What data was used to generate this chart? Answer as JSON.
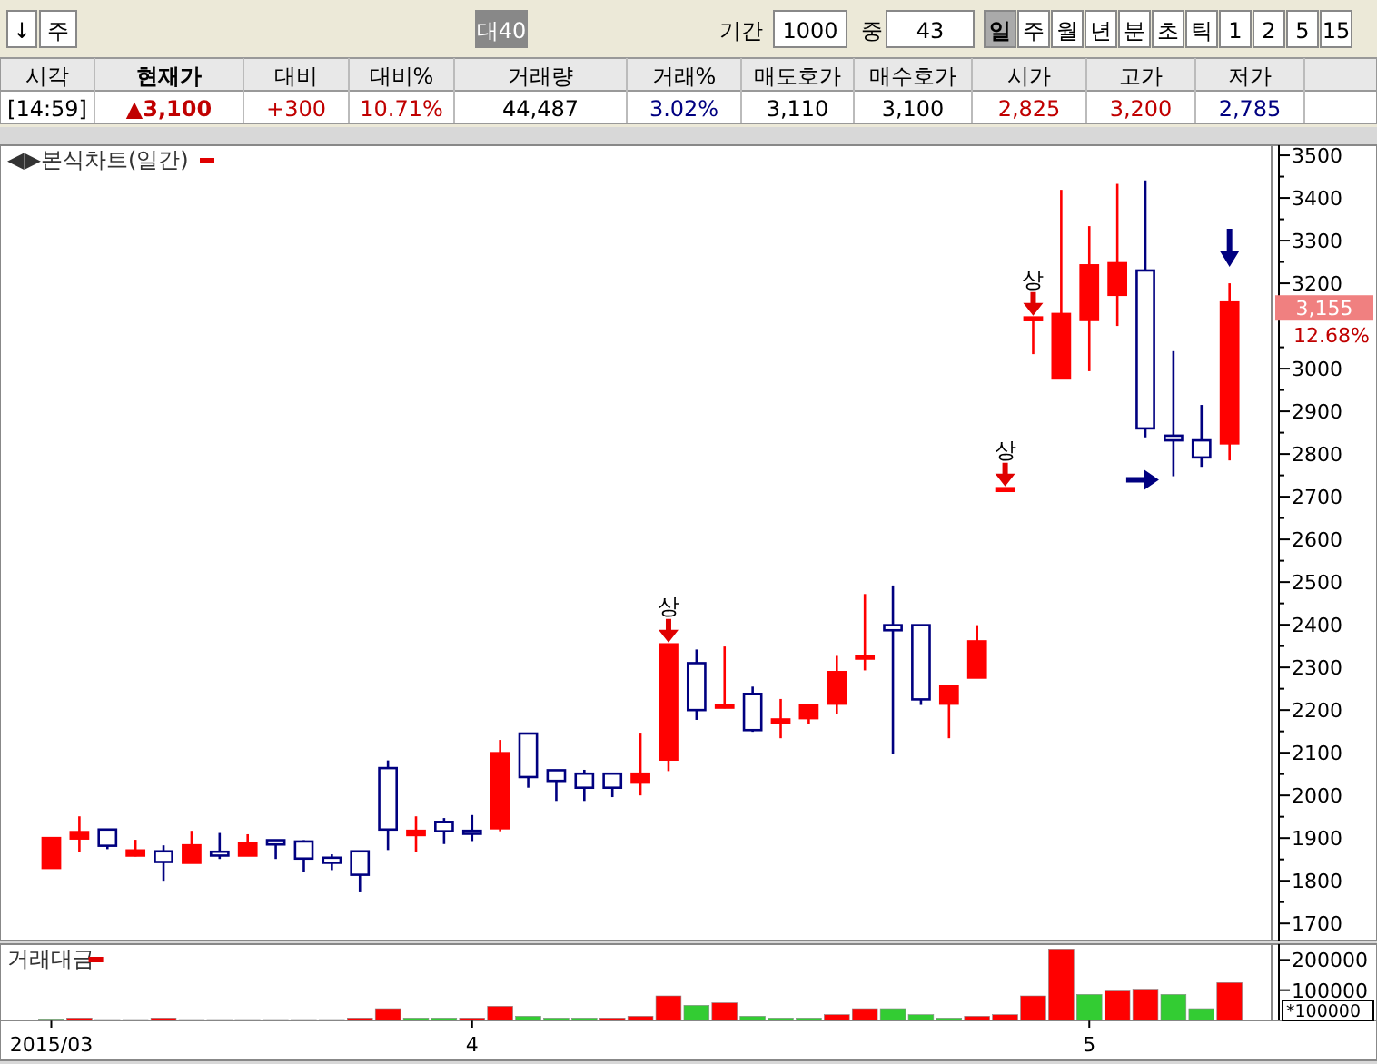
{
  "chart_data": [
    {
      "type": "other",
      "annotations": [
        "↓",
        "주",
        "대40",
        "기간",
        "1000",
        "중",
        "43",
        "일",
        "주",
        "월",
        "년",
        "분",
        "초",
        "틱",
        "1",
        "2",
        "5",
        "15",
        "시각",
        "현재가",
        "대비",
        "대비%",
        "거래량",
        "거래%",
        "매도호가",
        "매수호가",
        "시가",
        "고가",
        "저가",
        "[14:59]",
        "▲3,100",
        "+300",
        "10.71%",
        "44,487",
        "3.02%",
        "3,110",
        "3,100",
        "2,825",
        "3,200",
        "2,785"
      ]
    },
    {
      "type": "candlestick",
      "title": "◀▶본식차트(일간)",
      "categories": [
        null,
        null,
        null,
        null,
        null,
        null,
        null,
        null,
        null,
        null,
        null,
        null,
        null,
        null,
        null,
        null,
        null,
        null,
        null,
        null,
        null,
        null,
        null,
        null,
        null,
        null,
        null,
        null,
        null,
        null,
        null,
        null,
        null,
        null,
        null,
        null,
        null,
        null,
        null,
        null,
        null,
        null,
        null
      ],
      "ohlc": [
        [
          1830,
          1900,
          1830,
          1900
        ],
        [
          1899,
          1951,
          1868,
          1914
        ],
        [
          1920,
          1920,
          1874,
          1882
        ],
        [
          1859,
          1896,
          1857,
          1871
        ],
        [
          1869,
          1883,
          1800,
          1844
        ],
        [
          1842,
          1917,
          1842,
          1883
        ],
        [
          1868,
          1912,
          1851,
          1859
        ],
        [
          1859,
          1909,
          1859,
          1888
        ],
        [
          1895,
          1895,
          1851,
          1885
        ],
        [
          1892,
          1895,
          1821,
          1852
        ],
        [
          1854,
          1862,
          1825,
          1842
        ],
        [
          1869,
          1869,
          1775,
          1814
        ],
        [
          2064,
          2082,
          1872,
          1920
        ],
        [
          1907,
          1951,
          1868,
          1917
        ],
        [
          1938,
          1947,
          1886,
          1916
        ],
        [
          1917,
          1954,
          1893,
          1910
        ],
        [
          1923,
          2130,
          1916,
          2099
        ],
        [
          2145,
          2145,
          2018,
          2043
        ],
        [
          2059,
          2059,
          1987,
          2034
        ],
        [
          2051,
          2060,
          1987,
          2018
        ],
        [
          2051,
          2051,
          1996,
          2018
        ],
        [
          2030,
          2147,
          2000,
          2051
        ],
        [
          2084,
          2354,
          2057,
          2354
        ],
        [
          2310,
          2342,
          2177,
          2200
        ],
        [
          2212,
          2349,
          2204,
          2212
        ],
        [
          2238,
          2255,
          2149,
          2153
        ],
        [
          2170,
          2226,
          2134,
          2178
        ],
        [
          2181,
          2212,
          2168,
          2212
        ],
        [
          2215,
          2327,
          2191,
          2289
        ],
        [
          2327,
          2472,
          2293,
          2327
        ],
        [
          2399,
          2492,
          2098,
          2387
        ],
        [
          2399,
          2399,
          2212,
          2225
        ],
        [
          2215,
          2255,
          2134,
          2255
        ],
        [
          2276,
          2399,
          2276,
          2361
        ],
        [
          2720,
          2720,
          2720,
          2720
        ],
        [
          3120,
          3120,
          3034,
          3120
        ],
        [
          2977,
          3419,
          2977,
          3128
        ],
        [
          3114,
          3334,
          2994,
          3242
        ],
        [
          3173,
          3433,
          3100,
          3247
        ],
        [
          3230,
          3441,
          2839,
          2860
        ],
        [
          2843,
          3041,
          2748,
          2832
        ],
        [
          2832,
          2915,
          2770,
          2792
        ],
        [
          2825,
          3200,
          2785,
          3155
        ]
      ],
      "colors": [
        "#ff0000",
        "#ff0000",
        "#000080",
        "#ff0000",
        "#000080",
        "#ff0000",
        "#000080",
        "#ff0000",
        "#000080",
        "#000080",
        "#000080",
        "#000080",
        "#000080",
        "#ff0000",
        "#000080",
        "#000080",
        "#ff0000",
        "#000080",
        "#000080",
        "#000080",
        "#000080",
        "#ff0000",
        "#ff0000",
        "#000080",
        "#ff0000",
        "#000080",
        "#ff0000",
        "#ff0000",
        "#ff0000",
        "#ff0000",
        "#000080",
        "#000080",
        "#ff0000",
        "#ff0000",
        "#ff0000",
        "#ff0000",
        "#ff0000",
        "#ff0000",
        "#ff0000",
        "#000080",
        "#000080",
        "#000080",
        "#ff0000"
      ],
      "ylim": [
        1660,
        3515
      ],
      "yticks": [
        1700,
        1800,
        1900,
        2000,
        2100,
        2200,
        2300,
        2400,
        2500,
        2600,
        2700,
        2800,
        2900,
        3000,
        3200,
        3300,
        3400,
        3500
      ],
      "tick_labels": "y",
      "grid": false,
      "annotations": [
        "상",
        "상",
        "상",
        "3,155",
        "12.68%"
      ]
    },
    {
      "type": "bar",
      "title": "거래대금",
      "categories": [
        "2015/03",
        null,
        null,
        null,
        null,
        null,
        null,
        null,
        null,
        null,
        null,
        null,
        null,
        null,
        null,
        "4",
        null,
        null,
        null,
        null,
        null,
        null,
        null,
        null,
        null,
        null,
        null,
        null,
        null,
        null,
        null,
        null,
        null,
        null,
        null,
        null,
        null,
        "5",
        null,
        null,
        null,
        null,
        null
      ],
      "values": [
        5000,
        8000,
        3000,
        3000,
        8000,
        3000,
        3000,
        3000,
        3000,
        3000,
        3000,
        8000,
        39000,
        8000,
        8000,
        8000,
        47000,
        14000,
        8000,
        8000,
        8000,
        14000,
        81000,
        50000,
        58000,
        14000,
        8000,
        8000,
        19000,
        39000,
        39000,
        19000,
        8000,
        14000,
        19000,
        81000,
        236000,
        86000,
        97000,
        103000,
        86000,
        39000,
        125000
      ],
      "colors": [
        "#33cc33",
        "#ff0000",
        "#33cc33",
        "#33cc33",
        "#ff0000",
        "#33cc33",
        "#33cc33",
        "#33cc33",
        "#ff0000",
        "#ff0000",
        "#33cc33",
        "#ff0000",
        "#ff0000",
        "#33cc33",
        "#33cc33",
        "#ff0000",
        "#ff0000",
        "#33cc33",
        "#33cc33",
        "#33cc33",
        "#ff0000",
        "#ff0000",
        "#ff0000",
        "#33cc33",
        "#ff0000",
        "#33cc33",
        "#33cc33",
        "#33cc33",
        "#ff0000",
        "#ff0000",
        "#33cc33",
        "#33cc33",
        "#33cc33",
        "#ff0000",
        "#ff0000",
        "#ff0000",
        "#ff0000",
        "#33cc33",
        "#ff0000",
        "#ff0000",
        "#33cc33",
        "#33cc33",
        "#ff0000"
      ],
      "ylim": [
        0,
        240000
      ],
      "yticks": [
        100000,
        200000
      ],
      "grid": false,
      "annotations": [
        "*100000"
      ]
    }
  ]
}
